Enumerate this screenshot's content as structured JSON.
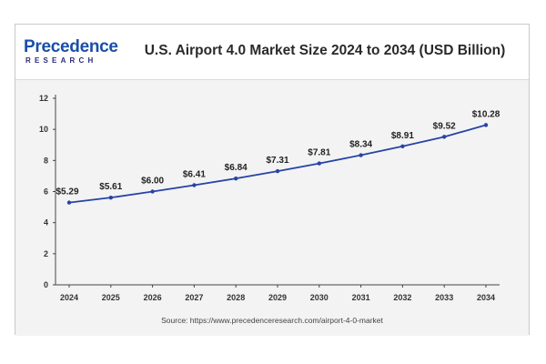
{
  "header": {
    "logo_main": "Precedence",
    "logo_sub": "RESEARCH"
  },
  "chart_data": {
    "type": "line",
    "title": "U.S. Airport 4.0 Market Size 2024 to 2034 (USD Billion)",
    "xlabel": "",
    "ylabel": "",
    "categories": [
      "2024",
      "2025",
      "2026",
      "2027",
      "2028",
      "2029",
      "2030",
      "2031",
      "2032",
      "2033",
      "2034"
    ],
    "values": [
      5.29,
      5.61,
      6.0,
      6.41,
      6.84,
      7.31,
      7.81,
      8.34,
      8.91,
      9.52,
      10.28
    ],
    "data_labels": [
      "$5.29",
      "$5.61",
      "$6.00",
      "$6.41",
      "$6.84",
      "$7.31",
      "$7.81",
      "$8.34",
      "$8.91",
      "$9.52",
      "$10.28"
    ],
    "ylim": [
      0,
      12
    ],
    "yticks": [
      0,
      2,
      4,
      6,
      8,
      10,
      12
    ],
    "grid": false,
    "line_color": "#2743a6",
    "source": "Source: https://www.precedenceresearch.com/airport-4-0-market"
  }
}
